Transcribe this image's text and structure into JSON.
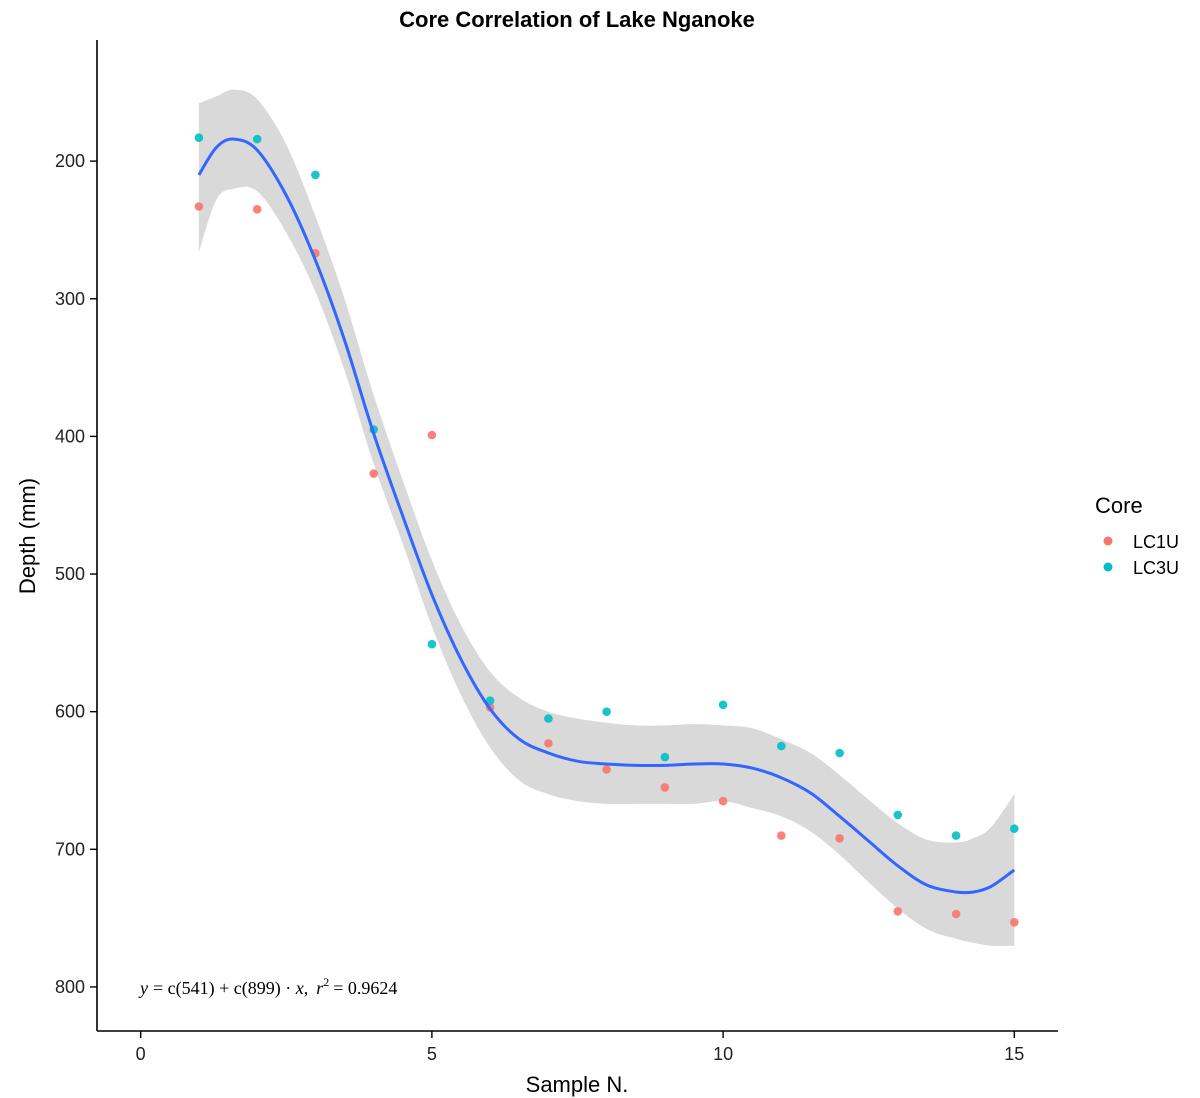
{
  "chart_data": {
    "type": "scatter",
    "title": "Core Correlation of Lake Nganoke",
    "xlabel": "Sample N.",
    "ylabel": "Depth (mm)",
    "xlim": [
      -0.75,
      15.75
    ],
    "ylim_reversed": [
      112,
      832
    ],
    "x_ticks": [
      0,
      5,
      10,
      15
    ],
    "y_ticks": [
      200,
      300,
      400,
      500,
      600,
      700,
      800
    ],
    "legend": {
      "title": "Core",
      "position": "right"
    },
    "series": [
      {
        "name": "LC1U",
        "color": "#F8766D",
        "x": [
          1,
          2,
          3,
          4,
          5,
          6,
          7,
          8,
          9,
          10,
          11,
          12,
          13,
          14,
          15
        ],
        "y": [
          233,
          235,
          267,
          427,
          399,
          597,
          623,
          642,
          655,
          665,
          690,
          692,
          745,
          747,
          753
        ]
      },
      {
        "name": "LC3U",
        "color": "#00BFC4",
        "x": [
          1,
          2,
          3,
          4,
          5,
          6,
          7,
          8,
          9,
          10,
          11,
          12,
          13,
          14,
          15
        ],
        "y": [
          183,
          184,
          210,
          395,
          551,
          592,
          605,
          600,
          633,
          595,
          625,
          630,
          675,
          690,
          685
        ]
      }
    ],
    "smooth": {
      "color": "#3366FF",
      "ribbon_color": "#D9D9D9",
      "x": [
        1,
        1.3,
        1.6,
        2,
        2.5,
        3,
        3.5,
        4,
        4.5,
        5,
        5.5,
        6,
        6.5,
        7,
        7.5,
        8,
        8.5,
        9,
        9.5,
        10,
        10.5,
        11,
        11.5,
        12,
        12.5,
        13,
        13.5,
        14,
        14.3,
        14.6,
        15
      ],
      "y": [
        210,
        190,
        184,
        192,
        225,
        272,
        330,
        398,
        458,
        515,
        562,
        598,
        620,
        630,
        636,
        638,
        639,
        639,
        638,
        638,
        641,
        648,
        659,
        676,
        694,
        712,
        726,
        731,
        731,
        727,
        715
      ],
      "upper": [
        266,
        228,
        220,
        222,
        252,
        295,
        352,
        420,
        478,
        538,
        588,
        626,
        650,
        660,
        665,
        667,
        667,
        667,
        667,
        665,
        670,
        676,
        687,
        704,
        724,
        743,
        758,
        765,
        768,
        770,
        770
      ],
      "lower": [
        158,
        153,
        148,
        155,
        188,
        240,
        300,
        370,
        432,
        490,
        537,
        571,
        590,
        600,
        605,
        608,
        610,
        610,
        609,
        610,
        612,
        620,
        630,
        646,
        664,
        681,
        693,
        695,
        692,
        684,
        660
      ]
    },
    "annotation": {
      "lhs": "y",
      "rhs_part1": "= c(541) + c(899) · ",
      "x_var": "x",
      "sep": ",",
      "r_var": "r",
      "r_power": "2",
      "r_value": "= 0.9624"
    }
  }
}
